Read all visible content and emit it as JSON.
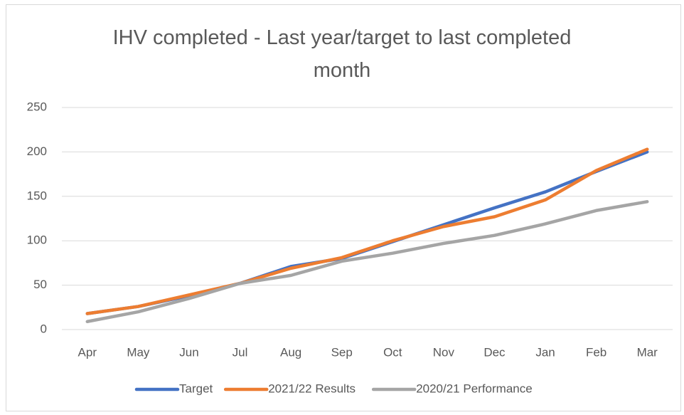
{
  "chart_data": {
    "type": "line",
    "title": "IHV completed - Last year/target to last completed month",
    "categories": [
      "Apr",
      "May",
      "Jun",
      "Jul",
      "Aug",
      "Sep",
      "Oct",
      "Nov",
      "Dec",
      "Jan",
      "Feb",
      "Mar"
    ],
    "series": [
      {
        "name": "Target",
        "color": "#4472c4",
        "values": [
          18,
          26,
          38,
          52,
          71,
          80,
          99,
          118,
          137,
          155,
          178,
          200
        ]
      },
      {
        "name": "2021/22 Results",
        "color": "#ed7d31",
        "values": [
          18,
          26,
          39,
          52,
          69,
          81,
          100,
          116,
          127,
          146,
          179,
          203
        ]
      },
      {
        "name": "2020/21 Performance",
        "color": "#a5a5a5",
        "values": [
          9,
          20,
          35,
          52,
          61,
          77,
          86,
          97,
          106,
          119,
          134,
          144
        ]
      }
    ],
    "ylim": [
      0,
      250
    ],
    "yticks": [
      0,
      50,
      100,
      150,
      200,
      250
    ],
    "grid": true,
    "legend": "bottom"
  }
}
